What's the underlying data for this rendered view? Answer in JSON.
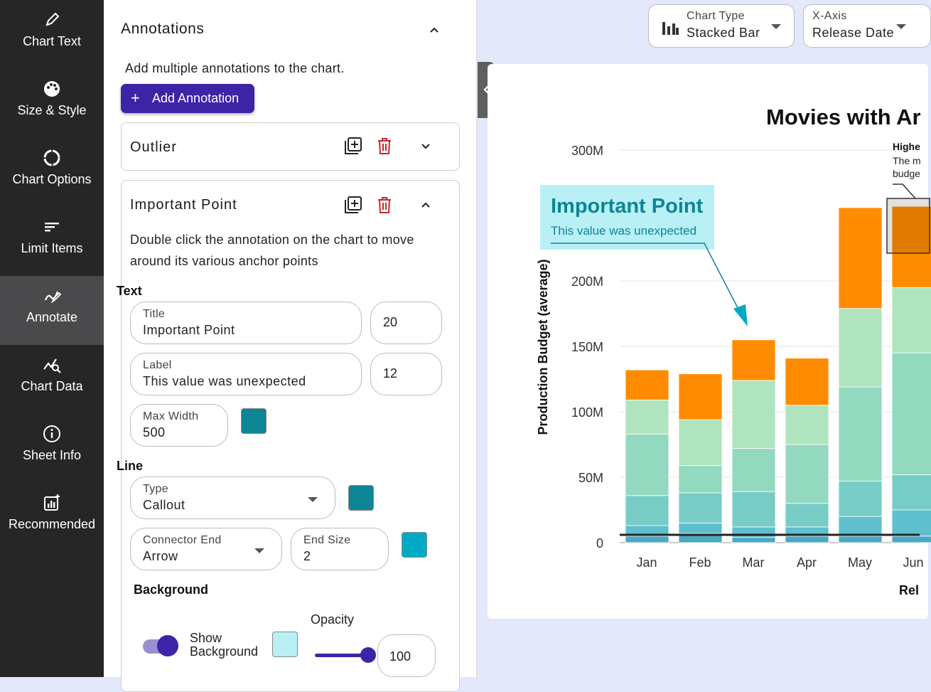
{
  "nav": {
    "items": [
      {
        "label": "Chart Text",
        "icon": "pencil-icon"
      },
      {
        "label": "Size & Style",
        "icon": "palette-icon"
      },
      {
        "label": "Chart Options",
        "icon": "donut-icon"
      },
      {
        "label": "Limit Items",
        "icon": "list-icon"
      },
      {
        "label": "Annotate",
        "icon": "annotate-icon",
        "active": true
      },
      {
        "label": "Chart Data",
        "icon": "chart-data-icon"
      },
      {
        "label": "Sheet Info",
        "icon": "info-icon"
      },
      {
        "label": "Recommended",
        "icon": "recommended-icon"
      }
    ]
  },
  "panel": {
    "title": "Annotations",
    "intro": "Add multiple annotations to the chart.",
    "add_button": "Add Annotation",
    "outlier_card": {
      "title": "Outlier"
    },
    "point_card": {
      "title": "Important Point",
      "help": "Double click the annotation on the chart to move around its various anchor points",
      "text_section": "Text",
      "title_field": {
        "label": "Title",
        "value": "Important Point",
        "size": "20"
      },
      "label_field": {
        "label": "Label",
        "value": "This value was unexpected",
        "size": "12"
      },
      "max_width": {
        "label": "Max Width",
        "value": "500"
      },
      "text_color": "#0e8595",
      "line_section": "Line",
      "line_type": {
        "label": "Type",
        "value": "Callout"
      },
      "line_color": "#0e8595",
      "connector_end": {
        "label": "Connector End",
        "value": "Arrow"
      },
      "end_size": {
        "label": "End Size",
        "value": "2"
      },
      "connector_color": "#00aac4",
      "background_section": "Background",
      "show_background_label": "Show Background",
      "background_color": "#b8f0f5",
      "opacity_label": "Opacity",
      "opacity_value": "100"
    }
  },
  "topbar": {
    "chart_type": {
      "label": "Chart Type",
      "value": "Stacked Bar"
    },
    "x_axis": {
      "label": "X-Axis",
      "value": "Release Date"
    }
  },
  "chart_data": {
    "type": "bar",
    "stacked": true,
    "title": "Movies with Ar",
    "ylabel": "Production Budget (average)",
    "xlabel": "Rel",
    "ylim": [
      0,
      300000000
    ],
    "y_ticks": [
      "0",
      "50M",
      "100M",
      "150M",
      "200M",
      "300M"
    ],
    "categories": [
      "Jan",
      "Feb",
      "Mar",
      "Apr",
      "May",
      "Jun"
    ],
    "segments": [
      [
        5000000,
        7000000,
        4000000,
        5000000,
        5000000,
        5000000
      ],
      [
        8000000,
        8000000,
        8000000,
        7000000,
        15000000,
        20000000
      ],
      [
        23000000,
        23000000,
        27000000,
        18000000,
        27000000,
        27000000
      ],
      [
        47000000,
        21000000,
        33000000,
        45000000,
        72000000,
        93000000
      ],
      [
        26000000,
        35000000,
        52000000,
        30000000,
        60000000,
        50000000
      ],
      [
        23000000,
        35000000,
        31000000,
        36000000,
        77000000,
        62000000
      ]
    ],
    "segment_colors": [
      "#4aa9c5",
      "#5fbfcc",
      "#78ccc6",
      "#93d9c0",
      "#b0e4be",
      "#ff8c00"
    ],
    "reference_line": 6000000,
    "annotation": {
      "title": "Important Point",
      "label": "This value was unexpected"
    },
    "annotation2": {
      "title": "Highe",
      "lines": [
        "The m",
        "budge"
      ]
    }
  }
}
